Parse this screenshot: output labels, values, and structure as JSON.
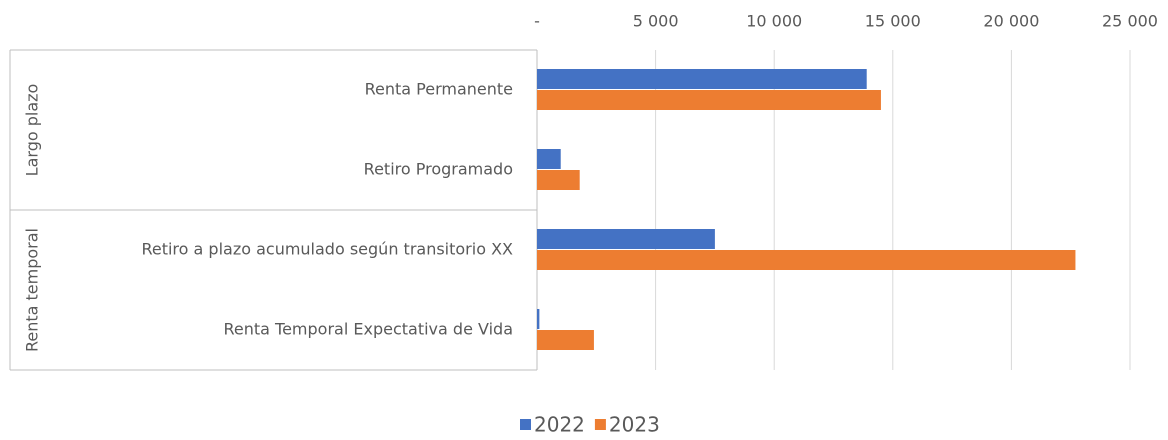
{
  "chart_data": {
    "type": "bar",
    "orientation": "horizontal",
    "groups": [
      "Largo plazo",
      "Renta temporal"
    ],
    "categories": [
      "Renta Permanente",
      "Retiro Programado",
      "Retiro a plazo acumulado según transitorio XX",
      "Renta Temporal Expectativa de Vida"
    ],
    "series": [
      {
        "name": "2022",
        "color": "#4472c4",
        "values": [
          13900,
          1000,
          7500,
          100
        ]
      },
      {
        "name": "2023",
        "color": "#ed7d31",
        "values": [
          14500,
          1800,
          22700,
          2400
        ]
      }
    ],
    "xlim": [
      0,
      25000
    ],
    "xticks": [
      {
        "value": 0,
        "label": "-"
      },
      {
        "value": 5000,
        "label": "5 000"
      },
      {
        "value": 10000,
        "label": "10 000"
      },
      {
        "value": 15000,
        "label": "15 000"
      },
      {
        "value": 20000,
        "label": "20 000"
      },
      {
        "value": 25000,
        "label": "25 000"
      }
    ],
    "grid": true,
    "legend": "bottom"
  }
}
